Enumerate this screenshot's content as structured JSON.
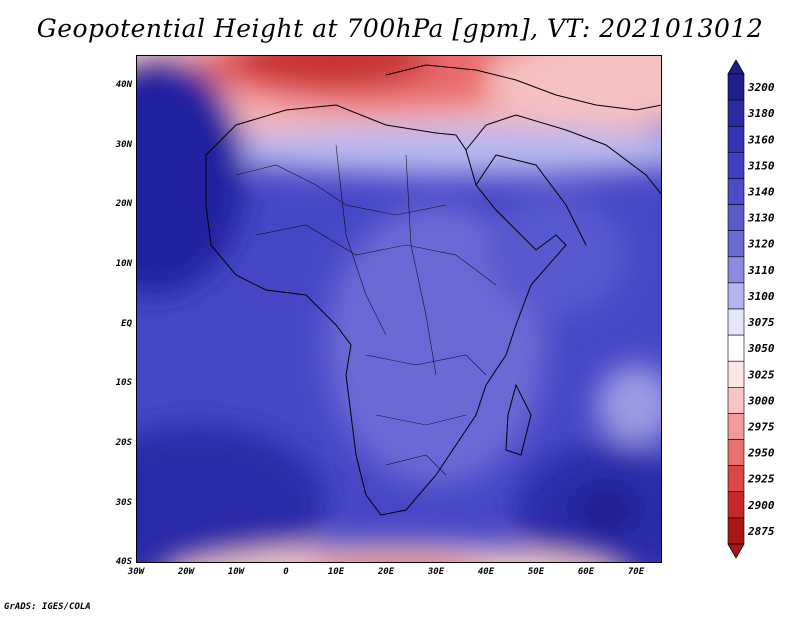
{
  "title": "Geopotential Height at 700hPa [gpm], VT: 2021013012",
  "footer": "GrADS: IGES/COLA",
  "lat_labels": [
    "40N",
    "30N",
    "20N",
    "10N",
    "EQ",
    "10S",
    "20S",
    "30S",
    "40S"
  ],
  "lon_labels": [
    "30W",
    "20W",
    "10W",
    "0",
    "10E",
    "20E",
    "30E",
    "40E",
    "50E",
    "60E",
    "70E"
  ],
  "colorbar": {
    "labels": [
      "3200",
      "3180",
      "3160",
      "3150",
      "3140",
      "3130",
      "3120",
      "3110",
      "3100",
      "3075",
      "3050",
      "3025",
      "3000",
      "2975",
      "2950",
      "2925",
      "2900",
      "2875"
    ],
    "colors": [
      "#1e1e8c",
      "#2a2aa2",
      "#3434b8",
      "#3f3fc4",
      "#4c4cc8",
      "#5a5acc",
      "#6a6ad2",
      "#8a8ade",
      "#b4b4ee",
      "#e6e6fa",
      "#ffffff",
      "#fce6e6",
      "#f8c4c4",
      "#f29a9a",
      "#ea7070",
      "#dc4848",
      "#c62828",
      "#a81616"
    ]
  },
  "map": {
    "extent": {
      "lon": [
        -30,
        75
      ],
      "lat": [
        -40,
        45
      ]
    },
    "features": [
      "coastlines",
      "country-borders"
    ]
  }
}
